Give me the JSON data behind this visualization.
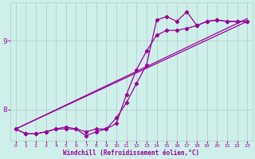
{
  "bg_color": "#cff0ea",
  "line_color": "#990099",
  "grid_color": "#b0c8c8",
  "xlabel": "Windchill (Refroidissement éolien,°C)",
  "xlim": [
    -0.5,
    23.5
  ],
  "ylim": [
    7.55,
    9.55
  ],
  "yticks": [
    8,
    9
  ],
  "xticks": [
    0,
    1,
    2,
    3,
    4,
    5,
    6,
    7,
    8,
    9,
    10,
    11,
    12,
    13,
    14,
    15,
    16,
    17,
    18,
    19,
    20,
    21,
    22,
    23
  ],
  "line1_x": [
    0,
    1,
    2,
    3,
    4,
    5,
    6,
    7,
    8,
    9,
    10,
    11,
    12,
    13,
    14,
    15,
    16,
    17,
    18,
    19,
    20,
    21,
    22,
    23
  ],
  "line1_y": [
    7.72,
    7.65,
    7.65,
    7.68,
    7.72,
    7.72,
    7.72,
    7.68,
    7.72,
    7.72,
    7.88,
    8.1,
    8.38,
    8.65,
    9.3,
    9.35,
    9.28,
    9.42,
    9.22,
    9.28,
    9.3,
    9.28,
    9.28,
    9.28
  ],
  "line2_x": [
    0,
    1,
    2,
    3,
    4,
    5,
    6,
    7,
    8,
    9,
    10,
    11,
    12,
    13,
    14,
    15,
    16,
    17,
    18,
    19,
    20,
    21,
    22,
    23
  ],
  "line2_y": [
    7.72,
    7.65,
    7.65,
    7.68,
    7.72,
    7.75,
    7.72,
    7.62,
    7.68,
    7.72,
    7.8,
    8.22,
    8.58,
    8.85,
    9.08,
    9.15,
    9.15,
    9.18,
    9.22,
    9.28,
    9.3,
    9.28,
    9.28,
    9.28
  ],
  "line3_x": [
    0,
    23
  ],
  "line3_y": [
    7.72,
    9.28
  ],
  "line4_x": [
    0,
    23
  ],
  "line4_y": [
    7.72,
    9.28
  ]
}
